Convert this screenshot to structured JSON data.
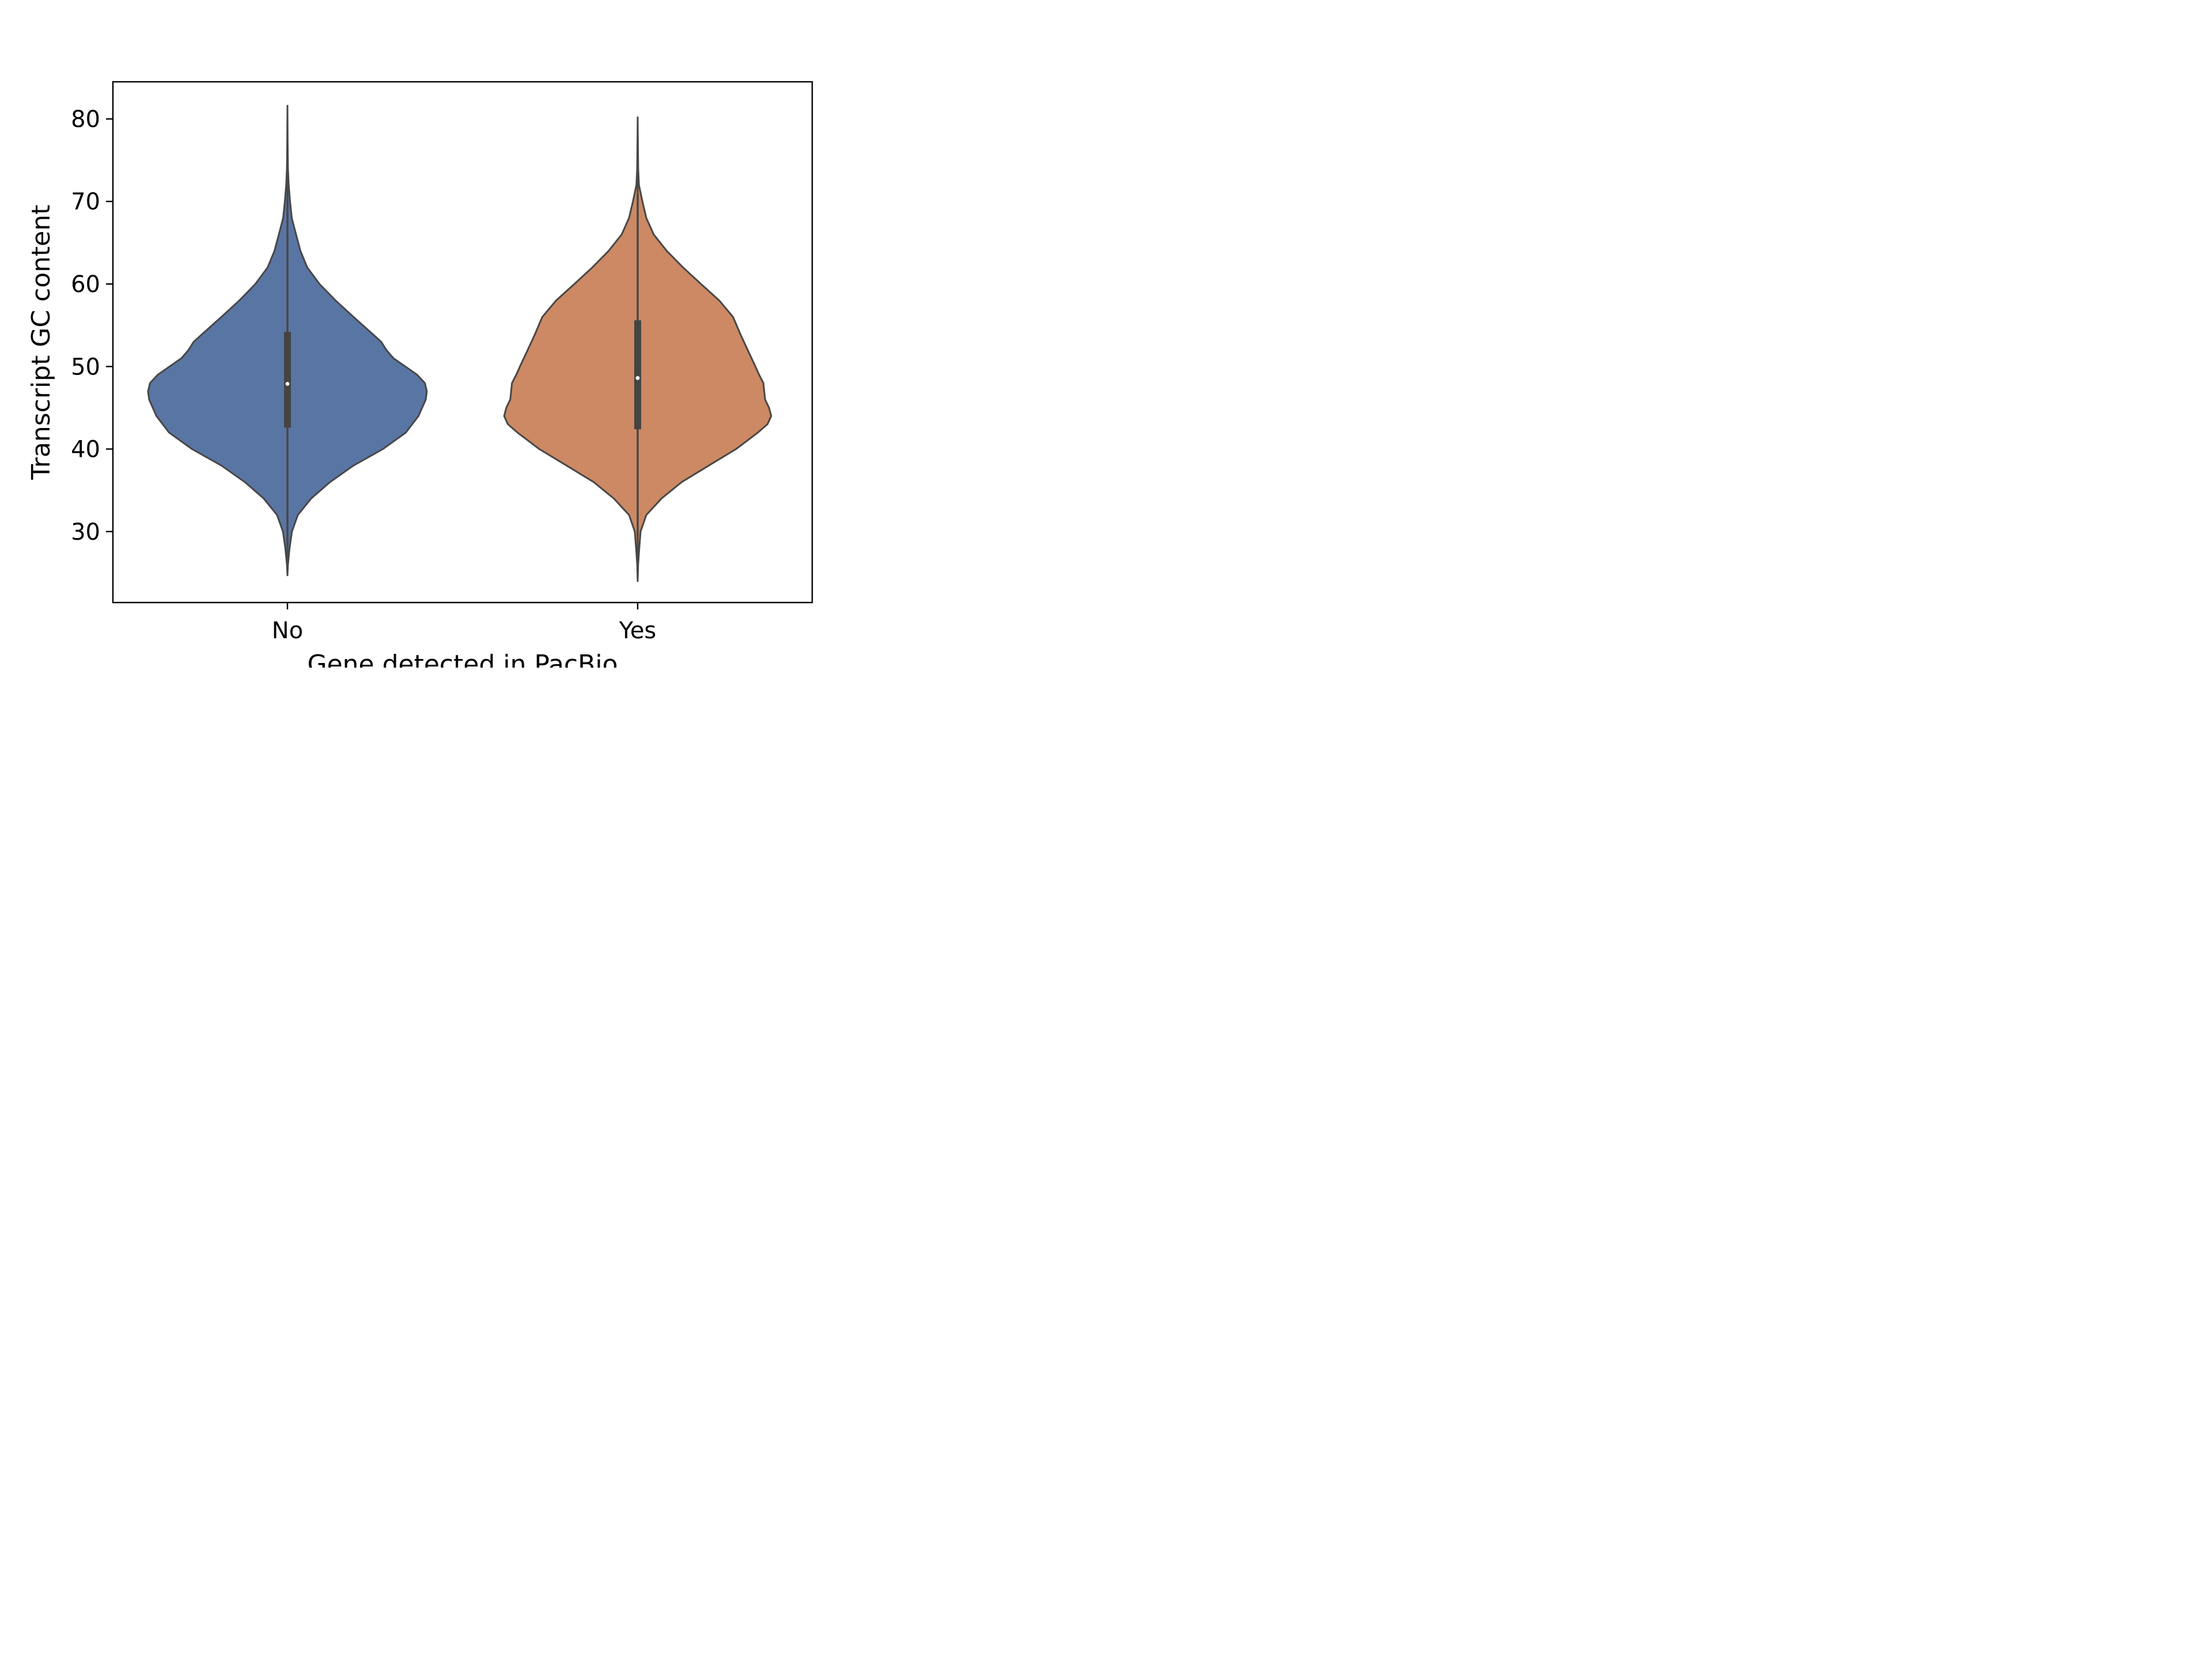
{
  "chart_data": {
    "type": "violin",
    "title": "",
    "xlabel": "Gene detected in PacBio",
    "ylabel": "Transcript GC content",
    "categories": [
      "No",
      "Yes"
    ],
    "ylim": [
      21.4,
      84.5
    ],
    "yticks": [
      30,
      40,
      50,
      60,
      70,
      80
    ],
    "grid": false,
    "legend": "none",
    "colors": {
      "No": "#5975a4",
      "Yes": "#cc8963",
      "outline": "#474747",
      "box": "#444444",
      "median": "#ffffff"
    },
    "violins": [
      {
        "category": "No",
        "min": 24.7,
        "max": 81.6,
        "q1": 42.6,
        "median": 47.9,
        "q3": 54.2,
        "whisker_low": 28.3,
        "whisker_high": 70.0,
        "density": [
          [
            24.7,
            0.0
          ],
          [
            26.0,
            0.0039
          ],
          [
            28.0,
            0.0151
          ],
          [
            30.0,
            0.0321
          ],
          [
            32.0,
            0.0745
          ],
          [
            34.0,
            0.1699
          ],
          [
            36.0,
            0.3063
          ],
          [
            38.0,
            0.4741
          ],
          [
            40.0,
            0.6853
          ],
          [
            42.0,
            0.8495
          ],
          [
            44.0,
            0.9402
          ],
          [
            46.0,
            0.9923
          ],
          [
            47.0,
            1.0
          ],
          [
            48.0,
            0.9856
          ],
          [
            49.0,
            0.9305
          ],
          [
            50.0,
            0.8462
          ],
          [
            51.0,
            0.7604
          ],
          [
            52.0,
            0.7098
          ],
          [
            53.0,
            0.6723
          ],
          [
            54.0,
            0.6071
          ],
          [
            56.0,
            0.4742
          ],
          [
            58.0,
            0.3455
          ],
          [
            60.0,
            0.2301
          ],
          [
            62.0,
            0.1422
          ],
          [
            64.0,
            0.0932
          ],
          [
            66.0,
            0.0617
          ],
          [
            68.0,
            0.031
          ],
          [
            70.0,
            0.0184
          ],
          [
            72.0,
            0.0092
          ],
          [
            74.0,
            0.0039
          ],
          [
            77.0,
            0.0017
          ],
          [
            81.6,
            0.0
          ]
        ]
      },
      {
        "category": "Yes",
        "min": 24.0,
        "max": 80.2,
        "q1": 42.4,
        "median": 48.6,
        "q3": 55.6,
        "whisker_low": 29.4,
        "whisker_high": 70.9,
        "density": [
          [
            24.0,
            0.0
          ],
          [
            26.0,
            0.0031
          ],
          [
            28.0,
            0.0115
          ],
          [
            30.0,
            0.0208
          ],
          [
            32.0,
            0.0614
          ],
          [
            34.0,
            0.1708
          ],
          [
            36.0,
            0.3162
          ],
          [
            38.0,
            0.5103
          ],
          [
            40.0,
            0.7063
          ],
          [
            42.0,
            0.8622
          ],
          [
            43.0,
            0.9309
          ],
          [
            44.0,
            0.958
          ],
          [
            45.0,
            0.9425
          ],
          [
            46.0,
            0.9141
          ],
          [
            48.0,
            0.9018
          ],
          [
            49.0,
            0.8712
          ],
          [
            50.0,
            0.8448
          ],
          [
            52.0,
            0.7892
          ],
          [
            54.0,
            0.7349
          ],
          [
            56.0,
            0.6842
          ],
          [
            58.0,
            0.5857
          ],
          [
            60.0,
            0.454
          ],
          [
            62.0,
            0.3255
          ],
          [
            64.0,
            0.2092
          ],
          [
            66.0,
            0.1147
          ],
          [
            68.0,
            0.0618
          ],
          [
            70.0,
            0.0339
          ],
          [
            72.0,
            0.0092
          ],
          [
            74.0,
            0.0039
          ],
          [
            77.0,
            0.0016
          ],
          [
            80.2,
            0.0
          ]
        ]
      }
    ]
  }
}
